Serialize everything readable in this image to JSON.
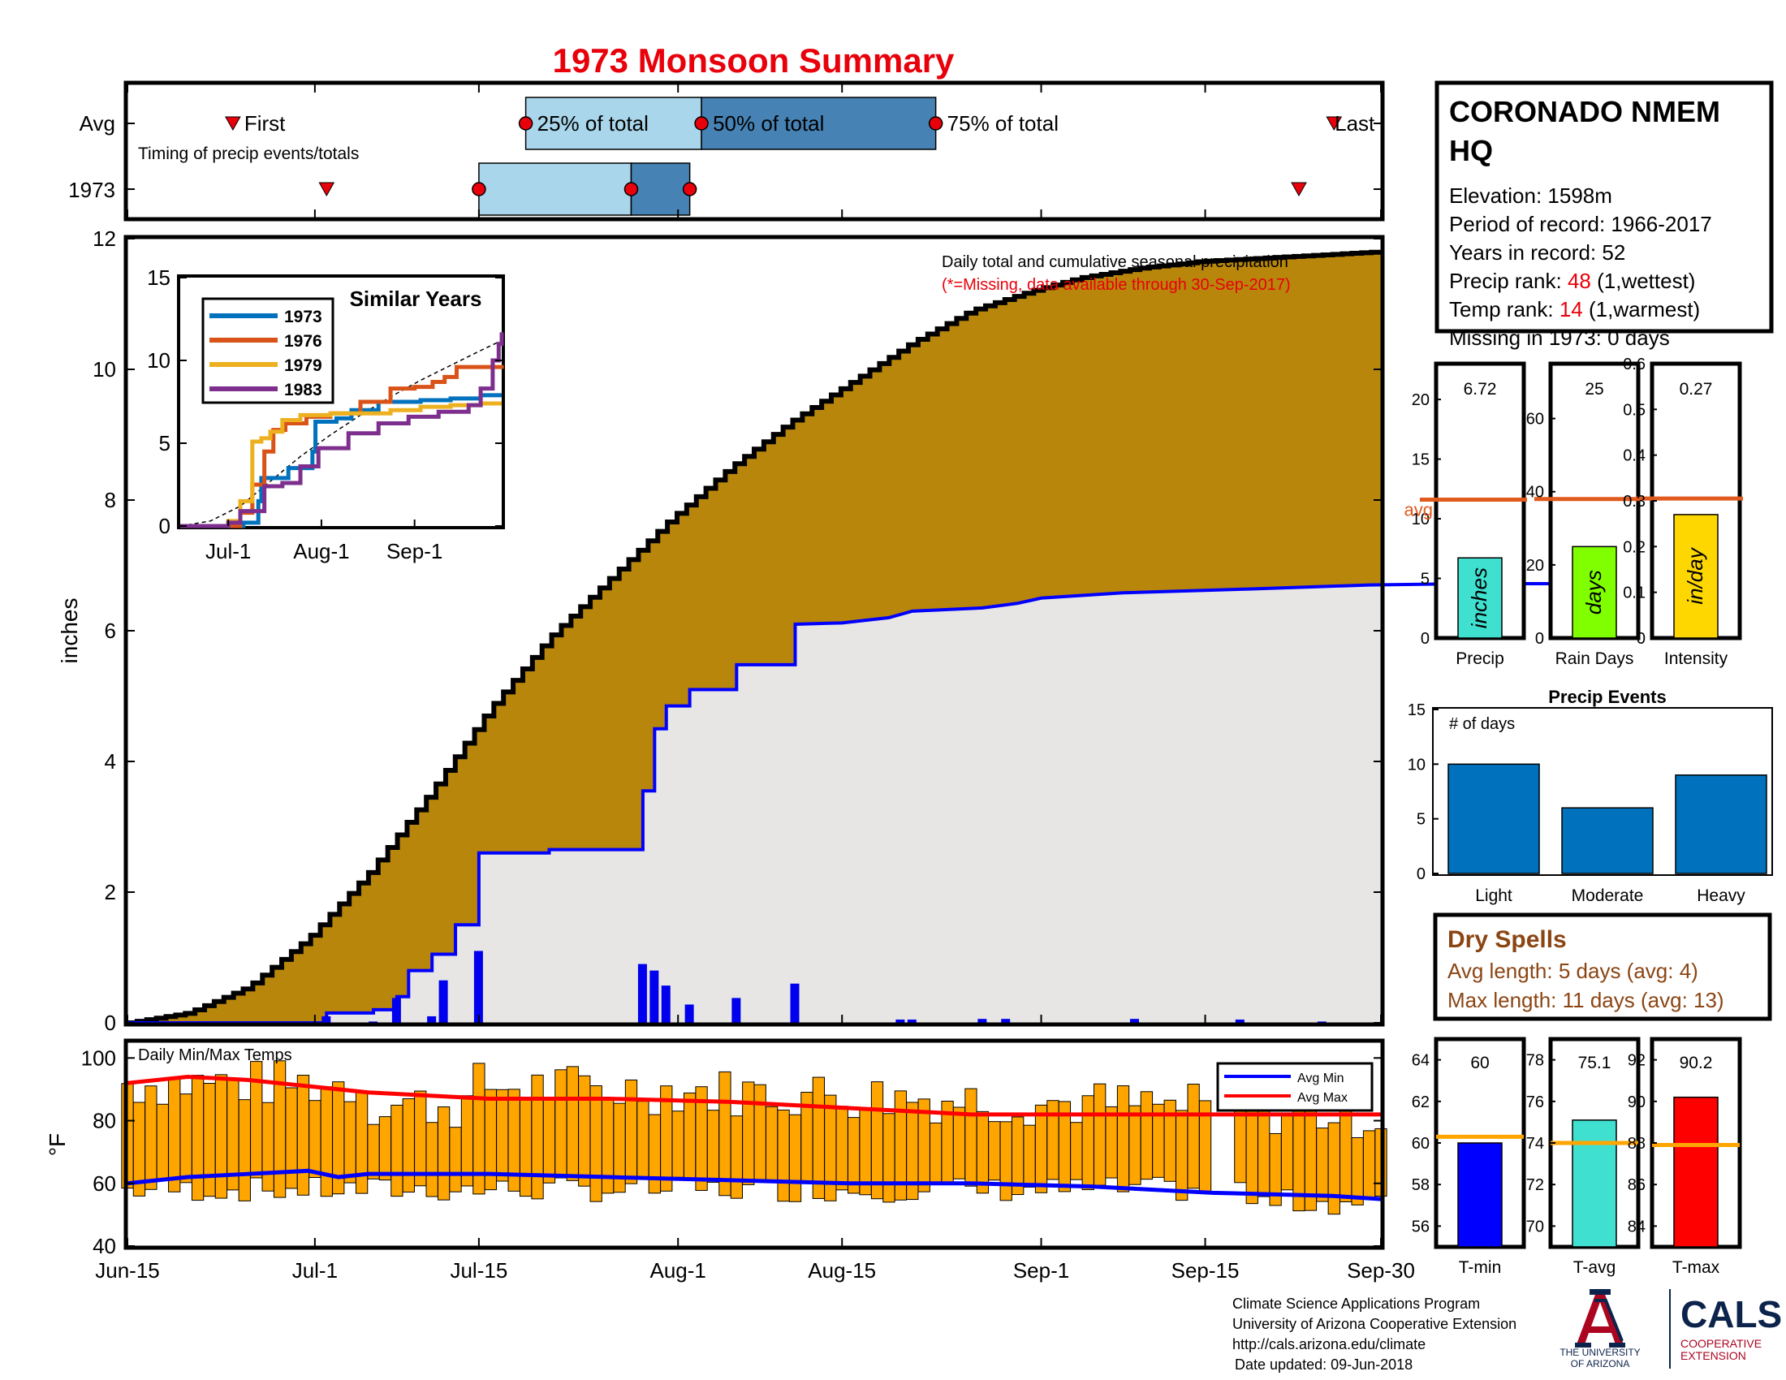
{
  "title": "1973 Monsoon Summary",
  "colors": {
    "title": "#e8000b",
    "cumulative_avg_fill": "#b8860b",
    "cumulative_obs_fill": "#e8e6e4",
    "obs_line": "#0000ff",
    "daily_bar": "#0000ee",
    "temp_bar": "#ffa500",
    "avg_min": "#0000ff",
    "avg_max": "#ff0000",
    "avg_marker": "#e05a1e",
    "timing_light": "#a9d6ea",
    "timing_dark": "#4682b4",
    "temp_avg_marker": "#ffa500"
  },
  "timing": {
    "caption": "Timing of precip events/totals",
    "rows": [
      {
        "label": "Avg",
        "first_label": "First",
        "last_label": "Last",
        "p25_label": "25% of total",
        "p50_label": "50% of total",
        "p75_label": "75% of total"
      },
      {
        "label": "1973"
      }
    ],
    "chart_data": {
      "type": "bar",
      "x_dates": [
        "Jun-15",
        "Jul-1",
        "Jul-15",
        "Aug-1",
        "Aug-15",
        "Sep-1",
        "Sep-15",
        "Sep-30"
      ],
      "avg": {
        "first": "Jun-24",
        "p25": "Jul-19",
        "p50": "Aug-3",
        "p75": "Aug-23",
        "last": "Sep-26"
      },
      "year": {
        "first": "Jul-2",
        "p25": "Jul-15",
        "p50": "Jul-28",
        "p75": "Aug-2",
        "last": "Sep-23"
      }
    }
  },
  "main": {
    "ylabel": "inches",
    "note_line1": "Daily total and cumulative seasonal precipitation",
    "note_line2": "(*=Missing, data available through 30-Sep-2017)",
    "chart_data": {
      "type": "area",
      "x_dates": [
        "Jun-15",
        "Jul-1",
        "Jul-15",
        "Aug-1",
        "Aug-15",
        "Sep-1",
        "Sep-15",
        "Sep-30"
      ],
      "ylim": [
        0,
        12
      ],
      "yticks": [
        0,
        2,
        4,
        6,
        8,
        10,
        12
      ],
      "avg_cumulative_points": [
        [
          0,
          0
        ],
        [
          10,
          0.15
        ],
        [
          20,
          0.55
        ],
        [
          30,
          1.3
        ],
        [
          40,
          2.3
        ],
        [
          50,
          3.5
        ],
        [
          60,
          4.8
        ],
        [
          70,
          5.9
        ],
        [
          80,
          6.8
        ],
        [
          90,
          7.7
        ],
        [
          100,
          8.5
        ],
        [
          110,
          9.2
        ],
        [
          120,
          9.8
        ],
        [
          130,
          10.4
        ],
        [
          140,
          10.9
        ],
        [
          150,
          11.2
        ],
        [
          158,
          11.4
        ],
        [
          168,
          11.55
        ],
        [
          178,
          11.65
        ],
        [
          188,
          11.7
        ],
        [
          198,
          11.75
        ],
        [
          208,
          11.8
        ]
      ],
      "obs_cumulative_points": [
        [
          0,
          0
        ],
        [
          17,
          0
        ],
        [
          17,
          0.15
        ],
        [
          21,
          0.15
        ],
        [
          21,
          0.2
        ],
        [
          23,
          0.2
        ],
        [
          23,
          0.4
        ],
        [
          24,
          0.4
        ],
        [
          24,
          0.8
        ],
        [
          26,
          0.8
        ],
        [
          26,
          1.05
        ],
        [
          28,
          1.05
        ],
        [
          28,
          1.5
        ],
        [
          30,
          1.5
        ],
        [
          30,
          2.6
        ],
        [
          36,
          2.6
        ],
        [
          36,
          2.65
        ],
        [
          44,
          2.65
        ],
        [
          44,
          3.55
        ],
        [
          45,
          3.55
        ],
        [
          45,
          4.5
        ],
        [
          46,
          4.5
        ],
        [
          46,
          4.85
        ],
        [
          48,
          4.85
        ],
        [
          48,
          5.1
        ],
        [
          52,
          5.1
        ],
        [
          52,
          5.48
        ],
        [
          57,
          5.48
        ],
        [
          57,
          6.1
        ],
        [
          61,
          6.12
        ],
        [
          65,
          6.2
        ],
        [
          66,
          6.25
        ],
        [
          67,
          6.3
        ],
        [
          73,
          6.35
        ],
        [
          76,
          6.42
        ],
        [
          78,
          6.5
        ],
        [
          85,
          6.58
        ],
        [
          96,
          6.64
        ],
        [
          106,
          6.7
        ],
        [
          114,
          6.72
        ],
        [
          126,
          6.72
        ]
      ],
      "daily_bars": [
        [
          17,
          0.1
        ],
        [
          21,
          0.02
        ],
        [
          23,
          0.38
        ],
        [
          26,
          0.1
        ],
        [
          27,
          0.65
        ],
        [
          30,
          1.1
        ],
        [
          44,
          0.9
        ],
        [
          45,
          0.8
        ],
        [
          46,
          0.57
        ],
        [
          48,
          0.28
        ],
        [
          52,
          0.38
        ],
        [
          57,
          0.6
        ],
        [
          66,
          0.05
        ],
        [
          67,
          0.05
        ],
        [
          73,
          0.06
        ],
        [
          75,
          0.06
        ],
        [
          86,
          0.06
        ],
        [
          95,
          0.05
        ],
        [
          102,
          0.02
        ]
      ]
    }
  },
  "inset": {
    "title": "Similar Years",
    "legend": [
      "1973",
      "1976",
      "1979",
      "1983"
    ],
    "colors": [
      "#0072bd",
      "#d95319",
      "#edb120",
      "#7e2f8e"
    ],
    "chart_data": {
      "type": "line",
      "categories": [
        "Jul-1",
        "Aug-1",
        "Sep-1"
      ],
      "ylim": [
        0,
        15
      ],
      "yticks": [
        0,
        5,
        10,
        15
      ],
      "series": [
        {
          "name": "1973",
          "points": [
            [
              0,
              0
            ],
            [
              17,
              0
            ],
            [
              21,
              0.2
            ],
            [
              26,
              1.5
            ],
            [
              27,
              2.9
            ],
            [
              30,
              2.9
            ],
            [
              36,
              3.5
            ],
            [
              44,
              4.5
            ],
            [
              45,
              6.3
            ],
            [
              52,
              6.5
            ],
            [
              57,
              7.0
            ],
            [
              66,
              7.5
            ],
            [
              80,
              7.6
            ],
            [
              90,
              7.7
            ],
            [
              100,
              7.9
            ],
            [
              107,
              7.9
            ]
          ]
        },
        {
          "name": "1976",
          "points": [
            [
              0,
              0
            ],
            [
              17,
              0
            ],
            [
              20,
              0.8
            ],
            [
              24,
              2.5
            ],
            [
              28,
              4.5
            ],
            [
              31,
              5.8
            ],
            [
              35,
              6.2
            ],
            [
              42,
              6.6
            ],
            [
              50,
              6.8
            ],
            [
              60,
              7.5
            ],
            [
              70,
              8.3
            ],
            [
              78,
              8.4
            ],
            [
              84,
              8.7
            ],
            [
              88,
              9.0
            ],
            [
              92,
              9.6
            ],
            [
              104,
              9.6
            ],
            [
              107,
              9.5
            ]
          ]
        },
        {
          "name": "1979",
          "points": [
            [
              0,
              0
            ],
            [
              12,
              0
            ],
            [
              16,
              0.3
            ],
            [
              20,
              1.5
            ],
            [
              24,
              5.1
            ],
            [
              27,
              5.3
            ],
            [
              30,
              5.7
            ],
            [
              34,
              6.4
            ],
            [
              40,
              6.7
            ],
            [
              50,
              6.8
            ],
            [
              60,
              6.8
            ],
            [
              70,
              7.0
            ],
            [
              80,
              7.2
            ],
            [
              90,
              7.3
            ],
            [
              100,
              7.4
            ],
            [
              107,
              7.4
            ]
          ]
        },
        {
          "name": "1983",
          "points": [
            [
              0,
              0
            ],
            [
              12,
              0
            ],
            [
              16,
              0.2
            ],
            [
              20,
              0.9
            ],
            [
              28,
              2.4
            ],
            [
              34,
              2.6
            ],
            [
              40,
              3.6
            ],
            [
              46,
              4.7
            ],
            [
              56,
              5.6
            ],
            [
              66,
              6.2
            ],
            [
              76,
              6.6
            ],
            [
              86,
              6.9
            ],
            [
              96,
              7.3
            ],
            [
              100,
              8.3
            ],
            [
              104,
              10.0
            ],
            [
              106,
              11.0
            ],
            [
              107,
              11.7
            ]
          ]
        }
      ],
      "avg_points": [
        [
          0,
          0
        ],
        [
          10,
          0.3
        ],
        [
          20,
          1.2
        ],
        [
          30,
          2.7
        ],
        [
          40,
          4.2
        ],
        [
          50,
          5.5
        ],
        [
          60,
          6.7
        ],
        [
          70,
          7.8
        ],
        [
          80,
          8.8
        ],
        [
          90,
          9.7
        ],
        [
          100,
          10.6
        ],
        [
          107,
          11.2
        ]
      ]
    }
  },
  "temps": {
    "label": "Daily Min/Max Temps",
    "ylabel": "°F",
    "legend_min": "Avg Min",
    "legend_max": "Avg Max",
    "chart_data": {
      "type": "bar",
      "ylim": [
        40,
        105
      ],
      "yticks": [
        40,
        60,
        80,
        100
      ],
      "avg_max_points": [
        [
          0,
          92
        ],
        [
          10,
          94
        ],
        [
          20,
          93
        ],
        [
          30,
          91
        ],
        [
          40,
          89
        ],
        [
          60,
          87
        ],
        [
          80,
          87
        ],
        [
          100,
          86
        ],
        [
          120,
          84
        ],
        [
          140,
          82
        ],
        [
          160,
          82
        ],
        [
          180,
          82
        ],
        [
          200,
          82
        ],
        [
          208,
          82
        ]
      ],
      "avg_min_points": [
        [
          0,
          60
        ],
        [
          10,
          62
        ],
        [
          20,
          63
        ],
        [
          30,
          64
        ],
        [
          35,
          62
        ],
        [
          40,
          63
        ],
        [
          60,
          63
        ],
        [
          80,
          62
        ],
        [
          100,
          61
        ],
        [
          120,
          60
        ],
        [
          140,
          60
        ],
        [
          160,
          59
        ],
        [
          180,
          57
        ],
        [
          200,
          56
        ],
        [
          208,
          55
        ]
      ]
    }
  },
  "station": {
    "name_line1": "CORONADO NMEM",
    "name_line2": "HQ",
    "elevation_label": "Elevation: 1598m",
    "period_label": "Period of record: 1966-2017",
    "years_label": "Years in record: 52",
    "precip_rank_prefix": "Precip rank: ",
    "precip_rank_value": "48",
    "precip_rank_suffix": " (1,wettest)",
    "temp_rank_prefix": "Temp rank: ",
    "temp_rank_value": "14",
    "temp_rank_suffix": " (1,warmest)",
    "missing_label": "Missing in 1973: 0 days"
  },
  "stats": [
    {
      "label": "Precip",
      "unit": "inches",
      "value": 6.72,
      "value_label": "6.72",
      "avg": 11.6,
      "ylim": [
        0,
        23
      ],
      "yticks": [
        0,
        5,
        10,
        15,
        20
      ],
      "color": "#40e0d0",
      "avg_label": "avg"
    },
    {
      "label": "Rain Days",
      "unit": "days",
      "value": 25,
      "value_label": "25",
      "avg": 38,
      "ylim": [
        0,
        75
      ],
      "yticks": [
        0,
        20,
        40,
        60
      ],
      "color": "#7fff00"
    },
    {
      "label": "Intensity",
      "unit": "in/day",
      "value": 0.27,
      "value_label": "0.27",
      "avg": 0.305,
      "ylim": [
        0,
        0.6
      ],
      "yticks": [
        0.1,
        0.2,
        0.3,
        0.4,
        0.5,
        0.6
      ],
      "zero_label": "0",
      "color": "#ffd700"
    }
  ],
  "events": {
    "title": "Precip Events",
    "ylabel": "# of days",
    "chart_data": {
      "type": "bar",
      "categories": [
        "Light",
        "Moderate",
        "Heavy"
      ],
      "values": [
        10,
        6,
        9
      ],
      "ylim": [
        0,
        15
      ],
      "yticks": [
        0,
        5,
        10,
        15
      ]
    }
  },
  "dry_spells": {
    "title": "Dry Spells",
    "avg_length": "Avg length: 5 days (avg: 4)",
    "max_length": "Max length: 11 days (avg: 13)"
  },
  "temp_stats": [
    {
      "label": "T-min",
      "value": 60,
      "value_label": "60",
      "avg": 60.3,
      "ylim": [
        55,
        65
      ],
      "yticks": [
        56,
        58,
        60,
        62,
        64
      ],
      "color": "#0000ff"
    },
    {
      "label": "T-avg",
      "value": 75.1,
      "value_label": "75.1",
      "avg": 74.0,
      "ylim": [
        69,
        79
      ],
      "yticks": [
        70,
        72,
        74,
        76,
        78
      ],
      "color": "#40e0d0"
    },
    {
      "label": "T-max",
      "value": 90.2,
      "value_label": "90.2",
      "avg": 87.9,
      "ylim": [
        83,
        93
      ],
      "yticks": [
        84,
        86,
        88,
        90,
        92
      ],
      "color": "#ff0000"
    }
  ],
  "footer": {
    "line1": "Climate Science Applications Program",
    "line2": "University of Arizona Cooperative Extension",
    "line3": "http://cals.arizona.edu/climate",
    "line4": "Date updated: 09-Jun-2018",
    "ua_logo_line1": "THE UNIVERSITY",
    "ua_logo_line2": "OF ARIZONA",
    "cals_logo": "CALS",
    "cals_line1": "COOPERATIVE",
    "cals_line2": "EXTENSION"
  }
}
